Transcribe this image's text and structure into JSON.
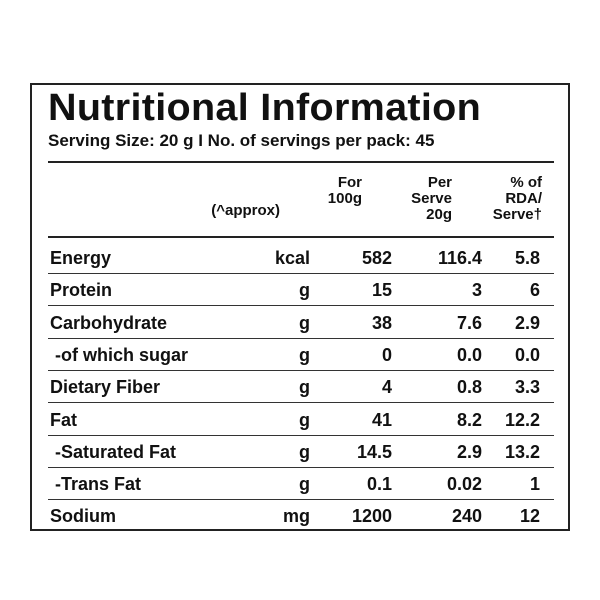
{
  "title": "Nutritional Information",
  "serving_line": "Serving Size: 20 g  I  No. of servings per pack: 45",
  "headers": {
    "approx": "(^approx)",
    "for100_1": "For",
    "for100_2": "100g",
    "serve_1": "Per",
    "serve_2": "Serve",
    "serve_3": "20g",
    "rda_1": "% of",
    "rda_2": "RDA/",
    "rda_3": "Serve†"
  },
  "rows": [
    {
      "name": "Energy",
      "unit": "kcal",
      "per100": "582",
      "perServe": "116.4",
      "rda": "5.8"
    },
    {
      "name": "Protein",
      "unit": "g",
      "per100": "15",
      "perServe": "3",
      "rda": "6"
    },
    {
      "name": "Carbohydrate",
      "unit": "g",
      "per100": "38",
      "perServe": "7.6",
      "rda": "2.9"
    },
    {
      "name": " -of which sugar",
      "unit": "g",
      "per100": "0",
      "perServe": "0.0",
      "rda": "0.0"
    },
    {
      "name": "Dietary Fiber",
      "unit": "g",
      "per100": "4",
      "perServe": "0.8",
      "rda": "3.3"
    },
    {
      "name": "Fat",
      "unit": "g",
      "per100": "41",
      "perServe": "8.2",
      "rda": "12.2"
    },
    {
      "name": " -Saturated Fat",
      "unit": "g",
      "per100": "14.5",
      "perServe": "2.9",
      "rda": "13.2"
    },
    {
      "name": " -Trans Fat",
      "unit": "g",
      "per100": "0.1",
      "perServe": "0.02",
      "rda": "1"
    },
    {
      "name": "Sodium",
      "unit": "mg",
      "per100": "1200",
      "perServe": "240",
      "rda": "12"
    }
  ]
}
